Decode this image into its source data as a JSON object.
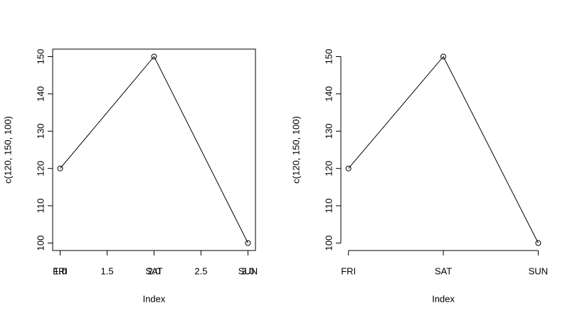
{
  "chart_data": [
    {
      "type": "line",
      "ylabel": "c(120, 150, 100)",
      "xlabel": "Index",
      "categories": [
        "FRI",
        "SAT",
        "SUN"
      ],
      "x": [
        1,
        2,
        3
      ],
      "values": [
        120,
        150,
        100
      ],
      "xlim": [
        0.92,
        3.08
      ],
      "xticks": [
        {
          "value": 1,
          "label": "1.0"
        },
        1.5,
        {
          "value": 2,
          "label": "2.0"
        },
        2.5,
        {
          "value": 3,
          "label": "3.0"
        }
      ],
      "ylim": [
        98,
        152
      ],
      "yticks": [
        100,
        110,
        120,
        130,
        140,
        150
      ],
      "box": true,
      "color": "#000000"
    },
    {
      "type": "line",
      "ylabel": "c(120, 150, 100)",
      "xlabel": "Index",
      "categories": [
        "FRI",
        "SAT",
        "SUN"
      ],
      "x": [
        1,
        2,
        3
      ],
      "values": [
        120,
        150,
        100
      ],
      "xlim": [
        0.92,
        3.08
      ],
      "ylim": [
        98,
        152
      ],
      "yticks": [
        100,
        110,
        120,
        130,
        140,
        150
      ],
      "box": false,
      "color": "#000000"
    }
  ]
}
